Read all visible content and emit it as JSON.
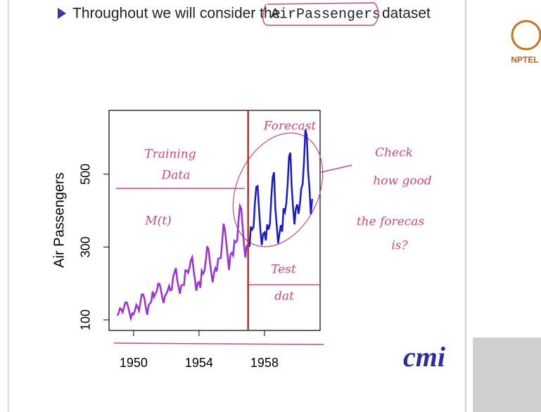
{
  "slide": {
    "bullet": "Throughout we will consider the",
    "code": "AirPassengers",
    "bullet_end": "dataset",
    "logo_top": "NPTEL",
    "logo_bottom": "cmi"
  },
  "chart_data": {
    "type": "line",
    "y_label": "Air Passengers",
    "xlim": [
      1948.5,
      1961.4
    ],
    "ylim": [
      71,
      675
    ],
    "xticks": [
      1950,
      1954,
      1958
    ],
    "yticks": [
      100,
      300,
      500
    ],
    "split_x": 1957,
    "split_color": "#c0302e",
    "annotations": [
      "Forecast",
      "Training",
      "Data",
      "M(t)",
      "Test",
      "dat",
      "Check",
      "how good",
      "the forecas",
      "is?"
    ],
    "series": [
      {
        "color": "#9b30d9",
        "x": [
          1949,
          1949.083,
          1949.167,
          1949.25,
          1949.333,
          1949.417,
          1949.5,
          1949.583,
          1949.667,
          1949.75,
          1949.833,
          1949.917,
          1950,
          1950.083,
          1950.167,
          1950.25,
          1950.333,
          1950.417,
          1950.5,
          1950.583,
          1950.667,
          1950.75,
          1950.833,
          1950.917,
          1951,
          1951.083,
          1951.167,
          1951.25,
          1951.333,
          1951.417,
          1951.5,
          1951.583,
          1951.667,
          1951.75,
          1951.833,
          1951.917,
          1952,
          1952.083,
          1952.167,
          1952.25,
          1952.333,
          1952.417,
          1952.5,
          1952.583,
          1952.667,
          1952.75,
          1952.833,
          1952.917,
          1953,
          1953.083,
          1953.167,
          1953.25,
          1953.333,
          1953.417,
          1953.5,
          1953.583,
          1953.667,
          1953.75,
          1953.833,
          1953.917,
          1954,
          1954.083,
          1954.167,
          1954.25,
          1954.333,
          1954.417,
          1954.5,
          1954.583,
          1954.667,
          1954.75,
          1954.833,
          1954.917,
          1955,
          1955.083,
          1955.167,
          1955.25,
          1955.333,
          1955.417,
          1955.5,
          1955.583,
          1955.667,
          1955.75,
          1955.833,
          1955.917,
          1956,
          1956.083,
          1956.167,
          1956.25,
          1956.333,
          1956.417,
          1956.5,
          1956.583,
          1956.667,
          1956.75,
          1956.833,
          1956.917
        ],
        "values": [
          112,
          118,
          132,
          129,
          121,
          135,
          148,
          148,
          136,
          119,
          104,
          118,
          115,
          126,
          141,
          135,
          125,
          149,
          170,
          170,
          158,
          133,
          114,
          140,
          145,
          150,
          178,
          163,
          172,
          178,
          199,
          199,
          184,
          162,
          146,
          166,
          171,
          180,
          193,
          181,
          183,
          218,
          230,
          242,
          209,
          191,
          172,
          194,
          196,
          196,
          236,
          235,
          229,
          243,
          264,
          272,
          237,
          211,
          180,
          201,
          204,
          188,
          235,
          227,
          234,
          264,
          302,
          293,
          259,
          229,
          203,
          229,
          242,
          233,
          267,
          269,
          270,
          315,
          364,
          347,
          312,
          274,
          237,
          278,
          284,
          277,
          317,
          313,
          318,
          374,
          413,
          405,
          355,
          306,
          271,
          306
        ]
      },
      {
        "color": "#1a1acc",
        "x": [
          1957,
          1957.083,
          1957.167,
          1957.25,
          1957.333,
          1957.417,
          1957.5,
          1957.583,
          1957.667,
          1957.75,
          1957.833,
          1957.917,
          1958,
          1958.083,
          1958.167,
          1958.25,
          1958.333,
          1958.417,
          1958.5,
          1958.583,
          1958.667,
          1958.75,
          1958.833,
          1958.917,
          1959,
          1959.083,
          1959.167,
          1959.25,
          1959.333,
          1959.417,
          1959.5,
          1959.583,
          1959.667,
          1959.75,
          1959.833,
          1959.917,
          1960,
          1960.083,
          1960.167,
          1960.25,
          1960.333,
          1960.417,
          1960.5,
          1960.583,
          1960.667,
          1960.75,
          1960.833,
          1960.917
        ],
        "values": [
          315,
          301,
          356,
          348,
          355,
          422,
          465,
          467,
          404,
          347,
          305,
          336,
          340,
          318,
          362,
          348,
          363,
          435,
          491,
          505,
          404,
          359,
          310,
          337,
          360,
          342,
          406,
          396,
          420,
          472,
          548,
          559,
          463,
          407,
          362,
          405,
          417,
          391,
          419,
          461,
          472,
          535,
          622,
          606,
          508,
          461,
          390,
          432
        ]
      }
    ]
  }
}
